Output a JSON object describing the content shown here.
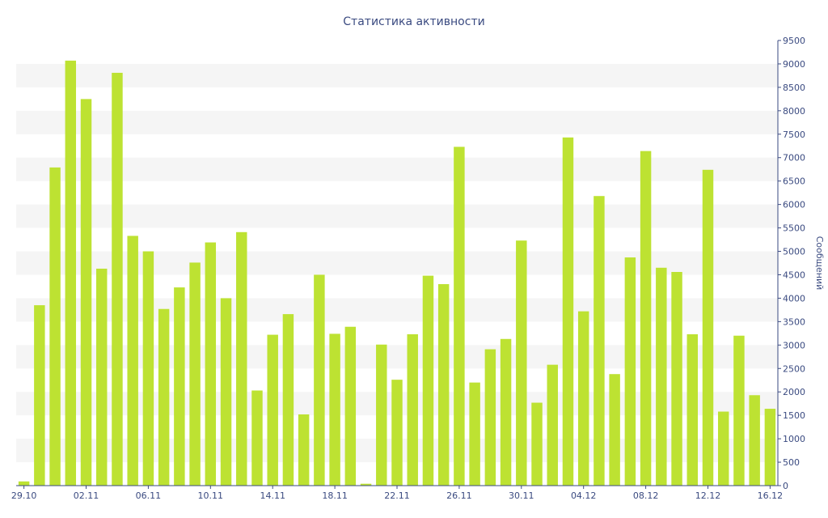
{
  "chart_data": {
    "type": "bar",
    "title": "Статистика активности",
    "xlabel": "",
    "ylabel": "Сообщений",
    "ylim": [
      0,
      9500
    ],
    "y_ticks": [
      0,
      500,
      1000,
      1500,
      2000,
      2500,
      3000,
      3500,
      4000,
      4500,
      5000,
      5500,
      6000,
      6500,
      7000,
      7500,
      8000,
      8500,
      9000,
      9500
    ],
    "x_tick_labels": [
      "29.10",
      "02.11",
      "06.11",
      "10.11",
      "14.11",
      "18.11",
      "22.11",
      "26.11",
      "30.11",
      "04.12",
      "08.12",
      "12.12",
      "16.12"
    ],
    "x_tick_every": 4,
    "y_axis_side": "right",
    "grid": "alternating horizontal bands",
    "bar_color": "#bde232",
    "categories": [
      "29.10",
      "30.10",
      "31.10",
      "01.11",
      "02.11",
      "03.11",
      "04.11",
      "05.11",
      "06.11",
      "07.11",
      "08.11",
      "09.11",
      "10.11",
      "11.11",
      "12.11",
      "13.11",
      "14.11",
      "15.11",
      "16.11",
      "17.11",
      "18.11",
      "19.11",
      "20.11",
      "21.11",
      "22.11",
      "23.11",
      "24.11",
      "25.11",
      "26.11",
      "27.11",
      "28.11",
      "29.11",
      "30.11",
      "01.12",
      "02.12",
      "03.12",
      "04.12",
      "05.12",
      "06.12",
      "07.12",
      "08.12",
      "09.12",
      "10.12",
      "11.12",
      "12.12",
      "13.12",
      "14.12",
      "15.12",
      "16.12"
    ],
    "values": [
      90,
      3850,
      6790,
      9070,
      8250,
      4630,
      8810,
      5330,
      5000,
      3770,
      4230,
      4760,
      5190,
      4000,
      5410,
      2030,
      3220,
      3660,
      1520,
      4500,
      3240,
      3390,
      40,
      3010,
      2260,
      3230,
      4480,
      4300,
      7230,
      2200,
      2910,
      3130,
      5230,
      1770,
      2580,
      7430,
      3720,
      6180,
      2380,
      4870,
      7140,
      4650,
      4560,
      3230,
      6740,
      1580,
      3200,
      1930,
      1640
    ]
  }
}
